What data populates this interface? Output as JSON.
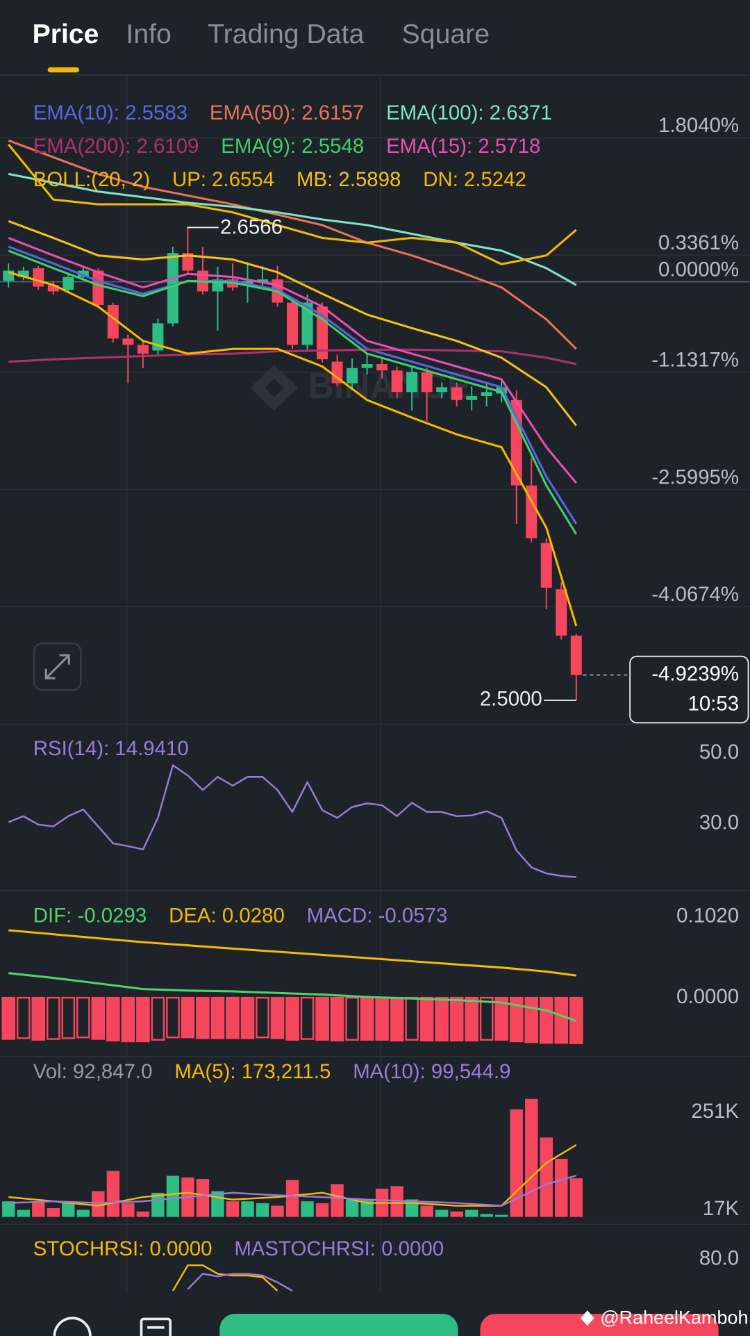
{
  "tabs": [
    "Price",
    "Info",
    "Trading Data",
    "Square"
  ],
  "logo_text": "BINANCE",
  "watermark": "@RaheelKamboh",
  "chart_data": [
    {
      "type": "candlestick",
      "indicator_label": "BOLL:(20, 2)",
      "indicator_color": "#f0b90b",
      "up_color": "#2ebd85",
      "down_color": "#f6465d",
      "open": [
        0.01,
        0.06,
        0.17,
        -0.04,
        -0.1,
        0.06,
        0.14,
        -0.29,
        -0.71,
        -0.79,
        -0.86,
        -0.52,
        0.36,
        0.14,
        -0.12,
        0.03,
        -0.04,
        -0.01,
        0.03,
        -0.26,
        -0.79,
        -0.31,
        -1.0,
        -1.27,
        -1.08,
        -1.03,
        -1.11,
        -1.38,
        -1.13,
        -1.38,
        -1.32,
        -1.48,
        -1.43,
        -1.4,
        -1.48,
        -2.55,
        -3.27,
        -3.85,
        -4.43
      ],
      "high": [
        0.23,
        0.19,
        0.2,
        0.01,
        0.11,
        0.18,
        0.17,
        -0.26,
        -0.66,
        -0.74,
        -0.46,
        0.44,
        0.67,
        0.44,
        0.19,
        0.23,
        0.25,
        0.2,
        0.2,
        -0.21,
        -0.16,
        -0.26,
        -0.91,
        -0.96,
        -0.91,
        -0.96,
        -1.06,
        -1.06,
        -1.08,
        -1.26,
        -1.26,
        -1.31,
        -1.26,
        -1.21,
        -1.36,
        -2.21,
        -3.21,
        -3.76,
        -4.41
      ],
      "low": [
        -0.07,
        0.02,
        -0.1,
        -0.16,
        -0.14,
        0.04,
        -0.33,
        -0.76,
        -1.27,
        -1.08,
        -0.91,
        -0.56,
        0.09,
        -0.16,
        -0.61,
        -0.11,
        -0.26,
        -0.06,
        -0.31,
        -0.84,
        -0.86,
        -1.01,
        -1.31,
        -1.36,
        -1.16,
        -1.21,
        -1.46,
        -1.61,
        -1.75,
        -1.46,
        -1.56,
        -1.61,
        -1.56,
        -1.51,
        -3.03,
        -3.26,
        -4.1,
        -4.48,
        -5.24
      ],
      "close": [
        0.14,
        0.14,
        -0.06,
        -0.12,
        0.06,
        0.14,
        -0.29,
        -0.71,
        -0.79,
        -0.9,
        -0.52,
        0.36,
        0.14,
        -0.12,
        0.03,
        -0.07,
        0.01,
        0.03,
        -0.26,
        -0.79,
        -0.26,
        -0.97,
        -1.27,
        -1.08,
        -1.03,
        -1.11,
        -1.38,
        -1.13,
        -1.38,
        -1.32,
        -1.48,
        -1.43,
        -1.38,
        -1.32,
        -2.55,
        -3.21,
        -3.83,
        -4.43,
        -4.9239
      ],
      "line_x": [
        0,
        3,
        6,
        9,
        12,
        15,
        18,
        21,
        24,
        27,
        30,
        33,
        36,
        38
      ],
      "series": [
        {
          "name": "EMA(10): 2.5583",
          "color": "#5468e0",
          "values": [
            0.44,
            0.23,
            0.01,
            -0.15,
            0.01,
            0.01,
            -0.1,
            -0.42,
            -0.84,
            -1.0,
            -1.16,
            -1.32,
            -2.44,
            -3.03
          ]
        },
        {
          "name": "EMA(50): 2.6157",
          "color": "#e8735a",
          "values": [
            1.77,
            1.56,
            1.35,
            1.19,
            1.08,
            0.97,
            0.84,
            0.71,
            0.49,
            0.33,
            0.14,
            -0.07,
            -0.47,
            -0.84
          ]
        },
        {
          "name": "EMA(100): 2.6371",
          "color": "#7fe3c8",
          "values": [
            1.35,
            1.24,
            1.13,
            1.06,
            0.99,
            0.94,
            0.87,
            0.78,
            0.71,
            0.6,
            0.49,
            0.39,
            0.17,
            -0.04
          ]
        },
        {
          "name": "EMA(200): 2.6109",
          "color": "#b0306f",
          "values": [
            -1.0,
            -0.97,
            -0.95,
            -0.93,
            -0.91,
            -0.9,
            -0.87,
            -0.86,
            -0.85,
            -0.85,
            -0.86,
            -0.87,
            -0.95,
            -1.03
          ]
        },
        {
          "name": "EMA(9): 2.5548",
          "color": "#3fd06a",
          "values": [
            0.39,
            0.17,
            -0.04,
            -0.18,
            0.01,
            -0.01,
            -0.12,
            -0.47,
            -0.9,
            -1.06,
            -1.22,
            -1.38,
            -2.55,
            -3.16
          ]
        },
        {
          "name": "EMA(15): 2.5718",
          "color": "#e84fb4",
          "values": [
            0.55,
            0.33,
            0.12,
            -0.07,
            0.1,
            0.06,
            -0.04,
            -0.31,
            -0.74,
            -0.9,
            -1.06,
            -1.22,
            -2.07,
            -2.52
          ]
        },
        {
          "name": "UP: 2.6554",
          "color": "#f0b90b",
          "values": [
            1.72,
            1.03,
            0.97,
            0.97,
            0.97,
            0.87,
            0.71,
            0.55,
            0.49,
            0.55,
            0.49,
            0.22,
            0.33,
            0.65
          ]
        },
        {
          "name": "MB: 2.5898",
          "color": "#f3c020",
          "values": [
            0.76,
            0.55,
            0.33,
            0.28,
            0.33,
            0.28,
            0.12,
            -0.15,
            -0.41,
            -0.58,
            -0.74,
            -0.95,
            -1.32,
            -1.8
          ]
        },
        {
          "name": "DN: 2.5242",
          "color": "#f5b800",
          "values": [
            0.12,
            -0.04,
            -0.31,
            -0.74,
            -0.9,
            -0.84,
            -0.84,
            -1.06,
            -1.48,
            -1.7,
            -1.91,
            -2.07,
            -3.08,
            -4.31
          ]
        }
      ],
      "high_marker": "2.6566",
      "low_marker": "2.5000",
      "last_label": "-4.9239%",
      "countdown": "10:53",
      "ylim": [
        -5.54,
        2.59
      ],
      "yticks": [
        {
          "value": 1.804,
          "label": "1.8040%"
        },
        {
          "value": 0.3361,
          "label": "0.3361%"
        },
        {
          "value": 0,
          "label": "0.0000%"
        },
        {
          "value": -1.1317,
          "label": "-1.1317%"
        },
        {
          "value": -2.5995,
          "label": "-2.5995%"
        },
        {
          "value": -4.0674,
          "label": "-4.0674%"
        }
      ],
      "grid": true
    },
    {
      "type": "line",
      "series": [
        {
          "name": "RSI(14): 14.9410",
          "color": "#9b7ad8",
          "values": [
            30.5,
            32.2,
            29.8,
            29.3,
            32.2,
            34.1,
            29.3,
            24.5,
            23.7,
            22.8,
            31.7,
            46.6,
            43.7,
            39.6,
            43.3,
            40.8,
            43.3,
            43.3,
            39.6,
            33.4,
            41.8,
            33.9,
            31.7,
            34.8,
            35.8,
            35.3,
            32.2,
            36.0,
            33.4,
            33.4,
            32.2,
            32.4,
            33.6,
            31.7,
            22.5,
            17.7,
            16.0,
            15.3,
            14.94
          ]
        }
      ],
      "ylim": [
        11.2,
        58.2
      ],
      "yticks": [
        {
          "value": 50,
          "label": "50.0"
        },
        {
          "value": 30,
          "label": "30.0"
        }
      ]
    },
    {
      "type": "macd",
      "line_x": [
        0,
        3,
        6,
        9,
        12,
        15,
        18,
        21,
        24,
        27,
        30,
        33,
        36,
        38
      ],
      "series": [
        {
          "name": "DIF: -0.0293",
          "color": "#4ed36a",
          "values": [
            0.031,
            0.025,
            0.018,
            0.011,
            0.009,
            0.008,
            0.006,
            0.004,
            0.001,
            -0.001,
            -0.003,
            -0.006,
            -0.016,
            -0.0293
          ]
        },
        {
          "name": "DEA: 0.0280",
          "color": "#f0b90b",
          "values": [
            0.085,
            0.08,
            0.075,
            0.07,
            0.066,
            0.062,
            0.058,
            0.054,
            0.05,
            0.046,
            0.042,
            0.038,
            0.033,
            0.028
          ]
        }
      ],
      "histogram": {
        "name": "MACD: -0.0573",
        "color": "#9b7ad8",
        "values": [
          -0.052,
          -0.051,
          -0.053,
          -0.052,
          -0.051,
          -0.05,
          -0.052,
          -0.054,
          -0.055,
          -0.055,
          -0.053,
          -0.05,
          -0.05,
          -0.051,
          -0.051,
          -0.051,
          -0.051,
          -0.05,
          -0.051,
          -0.053,
          -0.052,
          -0.053,
          -0.054,
          -0.053,
          -0.053,
          -0.053,
          -0.054,
          -0.053,
          -0.054,
          -0.054,
          -0.054,
          -0.054,
          -0.053,
          -0.053,
          -0.055,
          -0.056,
          -0.057,
          -0.057,
          -0.0573
        ]
      },
      "bar_color": "#f6465d",
      "ylim": [
        -0.0741,
        0.1353
      ],
      "yticks": [
        {
          "value": 0.102,
          "label": "0.1020"
        },
        {
          "value": 0,
          "label": "0.0000"
        }
      ]
    },
    {
      "type": "volume",
      "line_x": [
        0,
        3,
        6,
        9,
        12,
        15,
        18,
        21,
        24,
        27,
        30,
        33,
        36,
        38
      ],
      "bars": {
        "name": "Vol: 92,847.0",
        "color": "#929aa5",
        "values": [
          37500,
          17000,
          37500,
          21000,
          37500,
          17000,
          62000,
          111000,
          33000,
          13000,
          58000,
          99000,
          95000,
          91000,
          62000,
          37500,
          37500,
          33000,
          27000,
          89000,
          37500,
          33000,
          79000,
          42000,
          42000,
          68000,
          74000,
          42000,
          27000,
          17000,
          13000,
          17000,
          7000,
          5000,
          259000,
          284000,
          191000,
          140000,
          92847
        ]
      },
      "series": [
        {
          "name": "MA(5): 173,211.5",
          "color": "#f0b90b",
          "values": [
            47800,
            37500,
            27000,
            47800,
            58000,
            41600,
            47800,
            58000,
            33400,
            33400,
            27000,
            27000,
            130000,
            173211.5
          ]
        },
        {
          "name": "MA(10): 99,544.9",
          "color": "#9b7ad8",
          "values": [
            33400,
            37500,
            33400,
            37500,
            47800,
            58000,
            52000,
            47800,
            41600,
            37500,
            33400,
            27000,
            78600,
            99544.9
          ]
        }
      ],
      "ylim": [
        -18000,
        386000
      ],
      "yticks": [
        {
          "value": 251000,
          "label": "251K"
        },
        {
          "value": 17000,
          "label": "17K"
        }
      ]
    },
    {
      "type": "line",
      "series": [
        {
          "name": "STOCHRSI: 0.0000",
          "color": "#f0b90b",
          "values": [
            null,
            null,
            null,
            null,
            null,
            null,
            null,
            null,
            null,
            null,
            null,
            43,
            73,
            73,
            63,
            61,
            61,
            59,
            43,
            null,
            null,
            null,
            null,
            null,
            null,
            null,
            null,
            null,
            null,
            null,
            null,
            null,
            null,
            null,
            null,
            null,
            null,
            null,
            null
          ]
        },
        {
          "name": "MASTOCHRSI: 0.0000",
          "color": "#9b7ad8",
          "values": [
            null,
            null,
            null,
            null,
            null,
            null,
            null,
            null,
            null,
            null,
            null,
            null,
            45,
            63,
            60,
            63,
            63,
            61,
            53,
            43,
            null,
            null,
            null,
            null,
            null,
            null,
            null,
            null,
            null,
            null,
            null,
            null,
            null,
            null,
            null,
            null,
            null,
            null,
            null
          ]
        }
      ],
      "ylim": [
        41,
        121
      ],
      "yticks": [
        {
          "value": 80,
          "label": "80.0"
        }
      ]
    }
  ]
}
